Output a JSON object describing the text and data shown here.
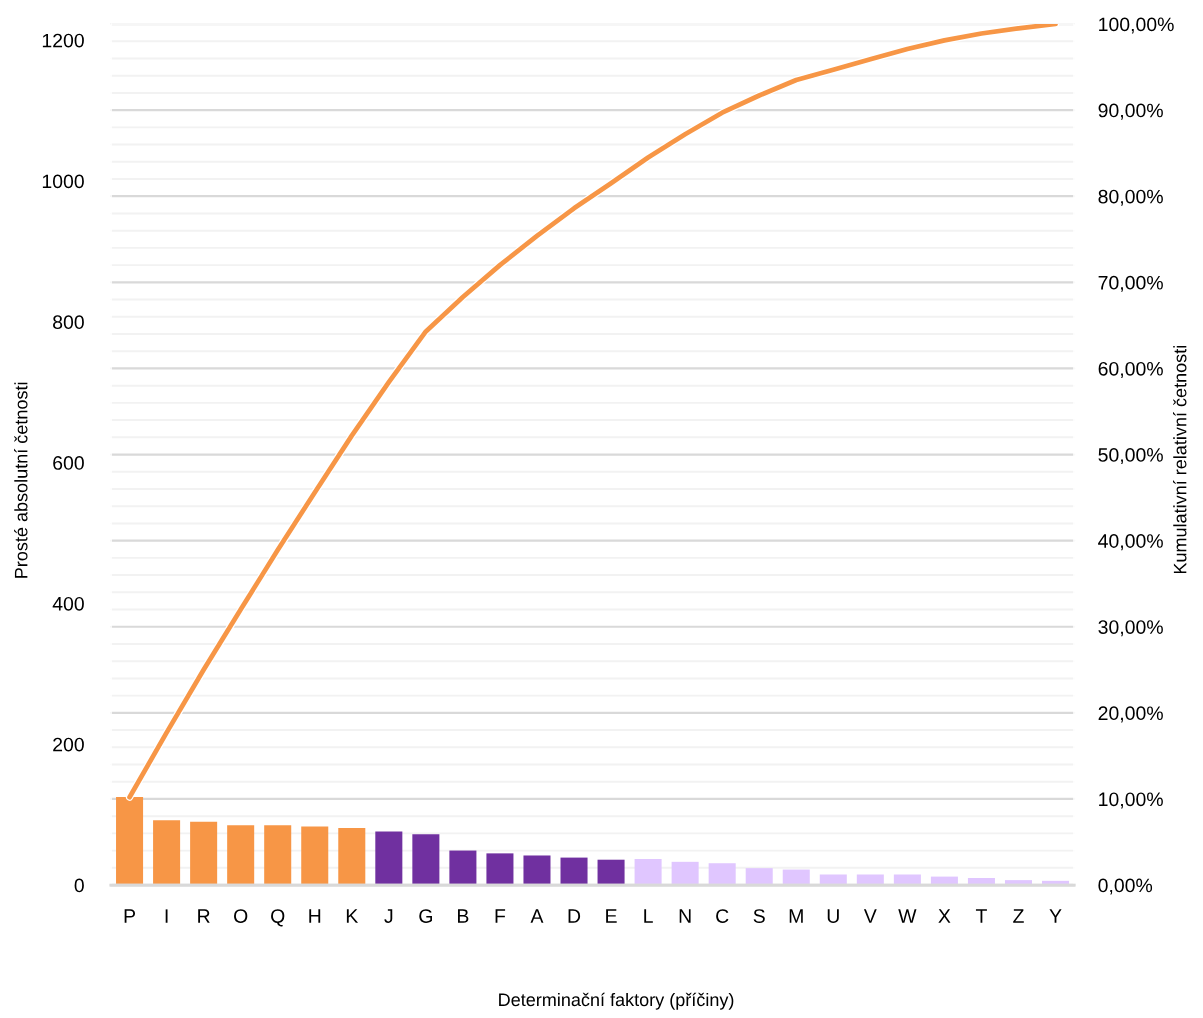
{
  "chart_data": {
    "type": "bar",
    "xlabel": "Determinační faktory (příčiny)",
    "ylabel": "Prosté absolutní četnosti",
    "y2label": "Kumulativní relativní četnosti",
    "categories": [
      "P",
      "I",
      "R",
      "O",
      "Q",
      "H",
      "K",
      "J",
      "G",
      "B",
      "F",
      "A",
      "D",
      "E",
      "L",
      "N",
      "C",
      "S",
      "M",
      "U",
      "V",
      "W",
      "X",
      "T",
      "Z",
      "Y"
    ],
    "series": [
      {
        "values": [
          125,
          92,
          90,
          85,
          85,
          83,
          81,
          76,
          72,
          49,
          45,
          42,
          39,
          36,
          37,
          33,
          31,
          24,
          22,
          15,
          15,
          15,
          12,
          10,
          7,
          6
        ],
        "colors": [
          "#f79646",
          "#f79646",
          "#f79646",
          "#f79646",
          "#f79646",
          "#f79646",
          "#f79646",
          "#7030a0",
          "#7030a0",
          "#7030a0",
          "#7030a0",
          "#7030a0",
          "#7030a0",
          "#7030a0",
          "#e0c6ff",
          "#e0c6ff",
          "#e0c6ff",
          "#e0c6ff",
          "#e0c6ff",
          "#e0c6ff",
          "#e0c6ff",
          "#e0c6ff",
          "#e0c6ff",
          "#e0c6ff",
          "#e0c6ff",
          "#e0c6ff"
        ]
      },
      {
        "type": "line",
        "axis": "y2",
        "color": "#f79646",
        "values": [
          10.2,
          17.7,
          25.0,
          32.0,
          38.9,
          45.6,
          52.2,
          58.4,
          64.3,
          68.3,
          72.0,
          75.4,
          78.6,
          81.5,
          84.5,
          87.2,
          89.7,
          91.7,
          93.5,
          94.7,
          95.9,
          97.1,
          98.1,
          98.9,
          99.5,
          100.0
        ]
      }
    ],
    "ylim": [
      0,
      1223
    ],
    "yticks": [
      0,
      200,
      400,
      600,
      800,
      1000,
      1200
    ],
    "y2lim": [
      0,
      100
    ],
    "y2ticks": [
      {
        "value": 0,
        "label": "0,00%"
      },
      {
        "value": 2,
        "label": null
      },
      {
        "value": 4,
        "label": null
      },
      {
        "value": 6,
        "label": null
      },
      {
        "value": 8,
        "label": null
      },
      {
        "value": 10,
        "label": "10,00%"
      },
      {
        "value": 12,
        "label": null
      },
      {
        "value": 14,
        "label": null
      },
      {
        "value": 16,
        "label": null
      },
      {
        "value": 18,
        "label": null
      },
      {
        "value": 20,
        "label": "20,00%"
      },
      {
        "value": 22,
        "label": null
      },
      {
        "value": 24,
        "label": null
      },
      {
        "value": 26,
        "label": null
      },
      {
        "value": 28,
        "label": null
      },
      {
        "value": 30,
        "label": "30,00%"
      },
      {
        "value": 32,
        "label": null
      },
      {
        "value": 34,
        "label": null
      },
      {
        "value": 36,
        "label": null
      },
      {
        "value": 38,
        "label": null
      },
      {
        "value": 40,
        "label": "40,00%"
      },
      {
        "value": 42,
        "label": null
      },
      {
        "value": 44,
        "label": null
      },
      {
        "value": 46,
        "label": null
      },
      {
        "value": 48,
        "label": null
      },
      {
        "value": 50,
        "label": "50,00%"
      },
      {
        "value": 52,
        "label": null
      },
      {
        "value": 54,
        "label": null
      },
      {
        "value": 56,
        "label": null
      },
      {
        "value": 58,
        "label": null
      },
      {
        "value": 60,
        "label": "60,00%"
      },
      {
        "value": 62,
        "label": null
      },
      {
        "value": 64,
        "label": null
      },
      {
        "value": 66,
        "label": null
      },
      {
        "value": 68,
        "label": null
      },
      {
        "value": 70,
        "label": "70,00%"
      },
      {
        "value": 72,
        "label": null
      },
      {
        "value": 74,
        "label": null
      },
      {
        "value": 76,
        "label": null
      },
      {
        "value": 78,
        "label": null
      },
      {
        "value": 80,
        "label": "80,00%"
      },
      {
        "value": 82,
        "label": null
      },
      {
        "value": 84,
        "label": null
      },
      {
        "value": 86,
        "label": null
      },
      {
        "value": 88,
        "label": null
      },
      {
        "value": 90,
        "label": "90,00%"
      },
      {
        "value": 92,
        "label": null
      },
      {
        "value": 94,
        "label": null
      },
      {
        "value": 96,
        "label": null
      },
      {
        "value": 98,
        "label": null
      },
      {
        "value": 100,
        "label": "100,00%"
      }
    ],
    "grid": "y2"
  }
}
